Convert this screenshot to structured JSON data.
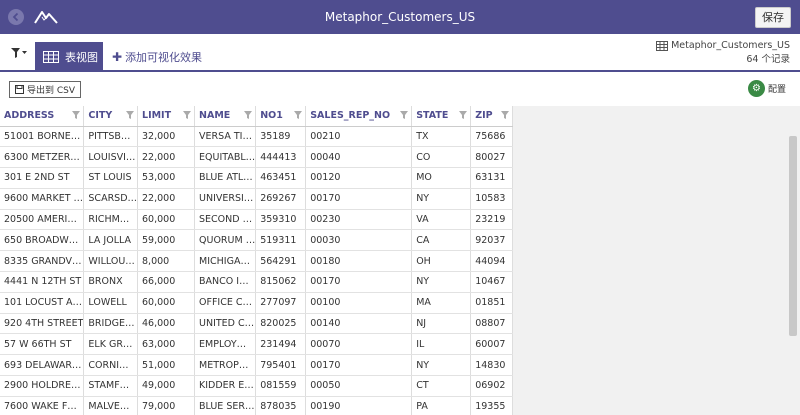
{
  "header": {
    "title": "Metaphor_Customers_US",
    "save_label": "保存"
  },
  "toolbar": {
    "table_tab_label": "表视图",
    "add_viz_label": "添加可视化效果",
    "dataset_name": "Metaphor_Customers_US",
    "record_count": "64 个记录"
  },
  "subbar": {
    "export_label": "导出到 CSV",
    "settings_label": "配置"
  },
  "colors": {
    "brand": "#4f4d8f",
    "settings_green": "#3a8a45"
  },
  "grid": {
    "columns": [
      "ADDRESS",
      "CITY",
      "LIMIT",
      "NAME",
      "NO1",
      "SALES_REP_NO",
      "STATE",
      "ZIP"
    ],
    "rows": [
      [
        "51001 BORNE…",
        "PITTSB…",
        "32,000",
        "VERSA TI…",
        "35189",
        "00210",
        "TX",
        "75686"
      ],
      [
        "6300 METZER…",
        "LOUISVI…",
        "22,000",
        "EQUITABL…",
        "444413",
        "00040",
        "CO",
        "80027"
      ],
      [
        "301 E 2ND ST",
        "ST LOUIS",
        "53,000",
        "BLUE ATL…",
        "463451",
        "00120",
        "MO",
        "63131"
      ],
      [
        "9600 MARKET …",
        "SCARSD…",
        "22,000",
        "UNIVERSI…",
        "269267",
        "00170",
        "NY",
        "10583"
      ],
      [
        "20500 AMERI…",
        "RICHM…",
        "60,000",
        "SECOND …",
        "359310",
        "00230",
        "VA",
        "23219"
      ],
      [
        "650 BROADW…",
        "LA JOLLA",
        "59,000",
        "QUORUM …",
        "519311",
        "00030",
        "CA",
        "92037"
      ],
      [
        "8335 GRANDV…",
        "WILLOU…",
        "8,000",
        "MICHIGA…",
        "564291",
        "00180",
        "OH",
        "44094"
      ],
      [
        "4441 N 12TH ST",
        "BRONX",
        "66,000",
        "BANCO I…",
        "815062",
        "00170",
        "NY",
        "10467"
      ],
      [
        "101 LOCUST A…",
        "LOWELL",
        "60,000",
        "OFFICE C…",
        "277097",
        "00100",
        "MA",
        "01851"
      ],
      [
        "920 4TH STREET",
        "BRIDGE…",
        "46,000",
        "UNITED C…",
        "820025",
        "00140",
        "NJ",
        "08807"
      ],
      [
        "57 W 66TH ST",
        "ELK GR…",
        "63,000",
        "EMPLOY…",
        "231494",
        "00070",
        "IL",
        "60007"
      ],
      [
        "693 DELAWAR…",
        "CORNI…",
        "51,000",
        "METROP…",
        "795401",
        "00170",
        "NY",
        "14830"
      ],
      [
        "2900 HOLDRE…",
        "STAMF…",
        "49,000",
        "KIDDER E…",
        "081559",
        "00050",
        "CT",
        "06902"
      ],
      [
        "7600 WAKE F…",
        "MALVE…",
        "79,000",
        "BLUE SER…",
        "878035",
        "00190",
        "PA",
        "19355"
      ]
    ]
  }
}
